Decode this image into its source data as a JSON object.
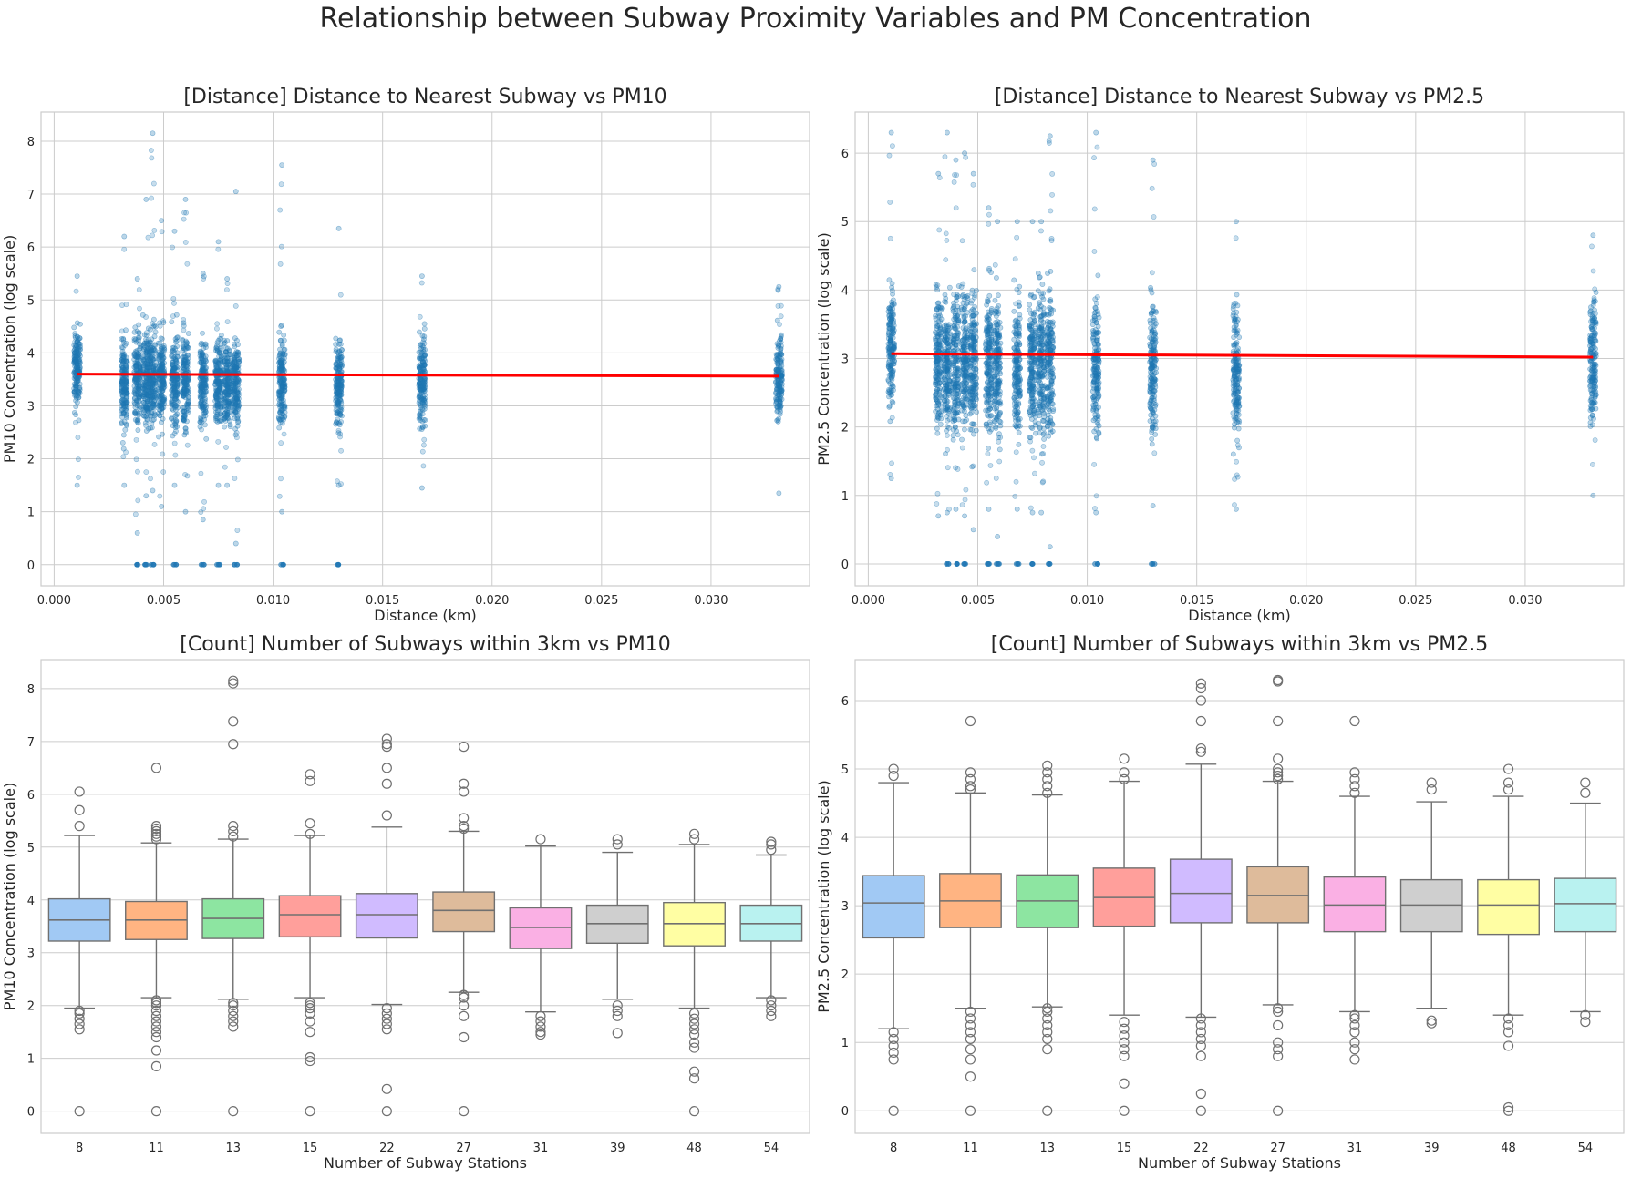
{
  "suptitle": "Relationship between Subway Proximity Variables and PM Concentration",
  "colors": {
    "scatter": "#1f77b4",
    "fit_line": "#ff0000",
    "grid": "#cccccc",
    "box_edge": "#707070",
    "box_palette": [
      "#a1c9f4",
      "#ffb482",
      "#8de5a1",
      "#ff9f9b",
      "#d0bbff",
      "#debb9b",
      "#fab0e4",
      "#cfcfcf",
      "#fffea3",
      "#b9f2f0"
    ]
  },
  "chart_data": [
    {
      "id": "pm10-distance",
      "type": "scatter",
      "title": "[Distance] Distance to Nearest Subway vs PM10",
      "xlabel": "Distance (km)",
      "ylabel": "PM10 Concentration (log scale)",
      "xlim": [
        -0.0006,
        0.0345
      ],
      "ylim": [
        -0.4,
        8.55
      ],
      "xticks": [
        "0.000",
        "0.005",
        "0.010",
        "0.015",
        "0.020",
        "0.025",
        "0.030"
      ],
      "xtick_values": [
        0,
        0.005,
        0.01,
        0.015,
        0.02,
        0.025,
        0.03
      ],
      "yticks": [
        0,
        1,
        2,
        3,
        4,
        5,
        6,
        7,
        8
      ],
      "grid": true,
      "columns": [
        {
          "x": 0.00105,
          "dense": [
            2.2,
            5.2
          ],
          "sparse": [
            1.5,
            5.45
          ],
          "zero": false
        },
        {
          "x": 0.0032,
          "dense": [
            1.7,
            5.1
          ],
          "sparse": [
            1.5,
            6.2
          ],
          "zero": false
        },
        {
          "x": 0.0038,
          "dense": [
            1.8,
            5.2
          ],
          "sparse": [
            0.6,
            5.4
          ],
          "zero": true
        },
        {
          "x": 0.0042,
          "dense": [
            1.8,
            5.2
          ],
          "sparse": [
            1.3,
            6.9
          ],
          "zero": true
        },
        {
          "x": 0.0045,
          "dense": [
            1.8,
            5.3
          ],
          "sparse": [
            1.4,
            8.15
          ],
          "zero": true
        },
        {
          "x": 0.0049,
          "dense": [
            1.8,
            5.2
          ],
          "sparse": [
            1.1,
            6.5
          ],
          "zero": false
        },
        {
          "x": 0.0055,
          "dense": [
            1.8,
            5.2
          ],
          "sparse": [
            1.5,
            6.3
          ],
          "zero": true
        },
        {
          "x": 0.006,
          "dense": [
            1.8,
            5.2
          ],
          "sparse": [
            1.0,
            6.9
          ],
          "zero": false
        },
        {
          "x": 0.0068,
          "dense": [
            1.8,
            5.0
          ],
          "sparse": [
            0.85,
            5.5
          ],
          "zero": true
        },
        {
          "x": 0.0075,
          "dense": [
            1.9,
            5.0
          ],
          "sparse": [
            1.5,
            6.1
          ],
          "zero": true
        },
        {
          "x": 0.0079,
          "dense": [
            1.8,
            5.0
          ],
          "sparse": [
            1.5,
            5.4
          ],
          "zero": false
        },
        {
          "x": 0.0083,
          "dense": [
            1.8,
            5.1
          ],
          "sparse": [
            0.4,
            7.05
          ],
          "zero": true
        },
        {
          "x": 0.0104,
          "dense": [
            1.7,
            5.2
          ],
          "sparse": [
            1.0,
            7.55
          ],
          "zero": true
        },
        {
          "x": 0.013,
          "dense": [
            1.8,
            5.1
          ],
          "sparse": [
            1.5,
            6.35
          ],
          "zero": true
        },
        {
          "x": 0.0168,
          "dense": [
            1.8,
            5.1
          ],
          "sparse": [
            1.45,
            5.45
          ],
          "zero": false
        },
        {
          "x": 0.0331,
          "dense": [
            2.1,
            5.0
          ],
          "sparse": [
            1.35,
            5.25
          ],
          "zero": false
        }
      ],
      "fit_line": {
        "x": [
          0.00105,
          0.0331
        ],
        "y": [
          3.6,
          3.56
        ]
      }
    },
    {
      "id": "pm25-distance",
      "type": "scatter",
      "title": "[Distance] Distance to Nearest Subway vs PM2.5",
      "xlabel": "Distance (km)",
      "ylabel": "PM2.5 Concentration (log scale)",
      "xlim": [
        -0.0006,
        0.0345
      ],
      "ylim": [
        -0.32,
        6.6
      ],
      "xticks": [
        "0.000",
        "0.005",
        "0.010",
        "0.015",
        "0.020",
        "0.025",
        "0.030"
      ],
      "xtick_values": [
        0,
        0.005,
        0.01,
        0.015,
        0.02,
        0.025,
        0.03
      ],
      "yticks": [
        0,
        1,
        2,
        3,
        4,
        5,
        6
      ],
      "grid": true,
      "columns": [
        {
          "x": 0.00105,
          "dense": [
            1.5,
            4.9
          ],
          "sparse": [
            1.25,
            6.3
          ],
          "zero": false
        },
        {
          "x": 0.0032,
          "dense": [
            1.1,
            4.8
          ],
          "sparse": [
            0.7,
            5.7
          ],
          "zero": false
        },
        {
          "x": 0.0036,
          "dense": [
            1.0,
            4.8
          ],
          "sparse": [
            0.75,
            6.3
          ],
          "zero": true
        },
        {
          "x": 0.004,
          "dense": [
            1.0,
            4.9
          ],
          "sparse": [
            0.8,
            5.9
          ],
          "zero": true
        },
        {
          "x": 0.0044,
          "dense": [
            1.0,
            4.9
          ],
          "sparse": [
            0.7,
            6.0
          ],
          "zero": true
        },
        {
          "x": 0.0048,
          "dense": [
            1.0,
            4.8
          ],
          "sparse": [
            0.5,
            5.7
          ],
          "zero": false
        },
        {
          "x": 0.0055,
          "dense": [
            1.0,
            4.9
          ],
          "sparse": [
            0.8,
            5.2
          ],
          "zero": true
        },
        {
          "x": 0.0059,
          "dense": [
            1.0,
            4.8
          ],
          "sparse": [
            0.4,
            5.0
          ],
          "zero": true
        },
        {
          "x": 0.0068,
          "dense": [
            1.0,
            4.7
          ],
          "sparse": [
            0.8,
            5.0
          ],
          "zero": true
        },
        {
          "x": 0.0075,
          "dense": [
            1.0,
            4.8
          ],
          "sparse": [
            0.75,
            5.0
          ],
          "zero": true
        },
        {
          "x": 0.0079,
          "dense": [
            1.0,
            4.8
          ],
          "sparse": [
            0.75,
            5.0
          ],
          "zero": false
        },
        {
          "x": 0.0083,
          "dense": [
            1.0,
            4.9
          ],
          "sparse": [
            0.25,
            6.25
          ],
          "zero": true
        },
        {
          "x": 0.0104,
          "dense": [
            0.9,
            4.9
          ],
          "sparse": [
            0.75,
            6.3
          ],
          "zero": true
        },
        {
          "x": 0.013,
          "dense": [
            0.9,
            4.8
          ],
          "sparse": [
            0.85,
            5.9
          ],
          "zero": true
        },
        {
          "x": 0.0168,
          "dense": [
            0.9,
            4.8
          ],
          "sparse": [
            0.8,
            5.0
          ],
          "zero": false
        },
        {
          "x": 0.0331,
          "dense": [
            1.3,
            4.7
          ],
          "sparse": [
            1.0,
            4.8
          ],
          "zero": false
        }
      ],
      "fit_line": {
        "x": [
          0.00105,
          0.0331
        ],
        "y": [
          3.07,
          3.02
        ]
      }
    },
    {
      "id": "pm10-count",
      "type": "box",
      "title": "[Count] Number of Subways within 3km vs PM10",
      "xlabel": "Number of Subway Stations",
      "ylabel": "PM10 Concentration (log scale)",
      "ylim": [
        -0.42,
        8.55
      ],
      "yticks": [
        0,
        1,
        2,
        3,
        4,
        5,
        6,
        7,
        8
      ],
      "grid": true,
      "categories": [
        "8",
        "11",
        "13",
        "15",
        "22",
        "27",
        "31",
        "39",
        "48",
        "54"
      ],
      "boxes": [
        {
          "q1": 3.22,
          "median": 3.62,
          "q3": 4.02,
          "whislo": 1.95,
          "whishi": 5.22,
          "fliers": [
            0,
            1.55,
            1.65,
            1.75,
            1.85,
            1.9,
            5.4,
            5.7,
            6.05
          ]
        },
        {
          "q1": 3.25,
          "median": 3.62,
          "q3": 3.97,
          "whislo": 2.15,
          "whishi": 5.08,
          "fliers": [
            0,
            0.85,
            1.15,
            1.4,
            1.5,
            1.6,
            1.7,
            1.8,
            1.9,
            2.0,
            2.05,
            2.1,
            5.15,
            5.2,
            5.25,
            5.3,
            5.35,
            5.4,
            6.5
          ]
        },
        {
          "q1": 3.27,
          "median": 3.65,
          "q3": 4.02,
          "whislo": 2.12,
          "whishi": 5.15,
          "fliers": [
            0,
            1.6,
            1.7,
            1.8,
            1.9,
            2.0,
            2.05,
            5.2,
            5.3,
            5.4,
            6.95,
            7.38,
            8.1,
            8.15
          ]
        },
        {
          "q1": 3.3,
          "median": 3.72,
          "q3": 4.08,
          "whislo": 2.15,
          "whishi": 5.22,
          "fliers": [
            0,
            0.95,
            1.02,
            1.5,
            1.7,
            1.85,
            1.95,
            2.0,
            2.05,
            5.25,
            5.45,
            6.25,
            6.38
          ]
        },
        {
          "q1": 3.28,
          "median": 3.72,
          "q3": 4.12,
          "whislo": 2.02,
          "whishi": 5.38,
          "fliers": [
            0,
            0.42,
            1.55,
            1.65,
            1.75,
            1.85,
            1.95,
            5.6,
            6.2,
            6.5,
            6.9,
            6.95,
            7.05
          ]
        },
        {
          "q1": 3.4,
          "median": 3.8,
          "q3": 4.15,
          "whislo": 2.25,
          "whishi": 5.3,
          "fliers": [
            0,
            1.4,
            1.8,
            2.0,
            2.15,
            2.2,
            5.35,
            5.4,
            5.55,
            6.05,
            6.2,
            6.9
          ]
        },
        {
          "q1": 3.08,
          "median": 3.48,
          "q3": 3.85,
          "whislo": 1.88,
          "whishi": 5.02,
          "fliers": [
            1.45,
            1.5,
            1.6,
            1.7,
            1.8,
            5.15
          ]
        },
        {
          "q1": 3.18,
          "median": 3.55,
          "q3": 3.9,
          "whislo": 2.12,
          "whishi": 4.9,
          "fliers": [
            1.48,
            1.8,
            1.9,
            2.0,
            5.05,
            5.15
          ]
        },
        {
          "q1": 3.13,
          "median": 3.55,
          "q3": 3.95,
          "whislo": 1.95,
          "whishi": 5.05,
          "fliers": [
            0,
            0.62,
            0.75,
            1.2,
            1.3,
            1.45,
            1.55,
            1.65,
            1.75,
            1.85,
            5.15,
            5.25
          ]
        },
        {
          "q1": 3.22,
          "median": 3.55,
          "q3": 3.9,
          "whislo": 2.15,
          "whishi": 4.85,
          "fliers": [
            1.8,
            1.9,
            2.0,
            2.1,
            4.95,
            5.05,
            5.1
          ]
        }
      ]
    },
    {
      "id": "pm25-count",
      "type": "box",
      "title": "[Count] Number of Subways within 3km vs PM2.5",
      "xlabel": "Number of Subway Stations",
      "ylabel": "PM2.5 Concentration (log scale)",
      "ylim": [
        -0.33,
        6.6
      ],
      "yticks": [
        0,
        1,
        2,
        3,
        4,
        5,
        6
      ],
      "grid": true,
      "categories": [
        "8",
        "11",
        "13",
        "15",
        "22",
        "27",
        "31",
        "39",
        "48",
        "54"
      ],
      "boxes": [
        {
          "q1": 2.53,
          "median": 3.04,
          "q3": 3.44,
          "whislo": 1.2,
          "whishi": 4.8,
          "fliers": [
            0,
            0.75,
            0.85,
            0.95,
            1.05,
            1.15,
            4.9,
            5.0
          ]
        },
        {
          "q1": 2.68,
          "median": 3.07,
          "q3": 3.47,
          "whislo": 1.5,
          "whishi": 4.65,
          "fliers": [
            0,
            0.5,
            0.75,
            0.9,
            1.05,
            1.15,
            1.25,
            1.35,
            1.45,
            4.7,
            4.75,
            4.85,
            4.95,
            5.7
          ]
        },
        {
          "q1": 2.68,
          "median": 3.07,
          "q3": 3.45,
          "whislo": 1.52,
          "whishi": 4.62,
          "fliers": [
            0,
            0.9,
            1.05,
            1.15,
            1.25,
            1.35,
            1.45,
            1.5,
            4.65,
            4.75,
            4.85,
            4.95,
            5.05
          ]
        },
        {
          "q1": 2.7,
          "median": 3.12,
          "q3": 3.55,
          "whislo": 1.4,
          "whishi": 4.82,
          "fliers": [
            0,
            0.4,
            0.8,
            0.9,
            1.0,
            1.1,
            1.2,
            1.3,
            4.85,
            4.95,
            5.15
          ]
        },
        {
          "q1": 2.75,
          "median": 3.18,
          "q3": 3.68,
          "whislo": 1.37,
          "whishi": 5.07,
          "fliers": [
            0,
            0.25,
            0.8,
            0.95,
            1.05,
            1.15,
            1.25,
            1.35,
            5.25,
            5.3,
            5.7,
            6.0,
            6.18,
            6.25
          ]
        },
        {
          "q1": 2.75,
          "median": 3.15,
          "q3": 3.57,
          "whislo": 1.55,
          "whishi": 4.82,
          "fliers": [
            0,
            0.8,
            0.9,
            1.0,
            1.25,
            1.45,
            1.5,
            4.85,
            4.9,
            4.95,
            5.0,
            5.15,
            5.7,
            6.28,
            6.3
          ]
        },
        {
          "q1": 2.62,
          "median": 3.01,
          "q3": 3.42,
          "whislo": 1.45,
          "whishi": 4.6,
          "fliers": [
            0.75,
            0.9,
            1.0,
            1.15,
            1.25,
            1.35,
            1.4,
            4.65,
            4.75,
            4.85,
            4.95,
            5.7
          ]
        },
        {
          "q1": 2.62,
          "median": 3.01,
          "q3": 3.38,
          "whislo": 1.5,
          "whishi": 4.52,
          "fliers": [
            1.28,
            1.32,
            4.7,
            4.8
          ]
        },
        {
          "q1": 2.58,
          "median": 3.01,
          "q3": 3.38,
          "whislo": 1.4,
          "whishi": 4.6,
          "fliers": [
            0,
            0.05,
            0.95,
            1.15,
            1.25,
            1.35,
            4.7,
            4.8,
            5.0
          ]
        },
        {
          "q1": 2.62,
          "median": 3.03,
          "q3": 3.4,
          "whislo": 1.45,
          "whishi": 4.5,
          "fliers": [
            1.3,
            1.4,
            4.65,
            4.8
          ]
        }
      ]
    }
  ]
}
